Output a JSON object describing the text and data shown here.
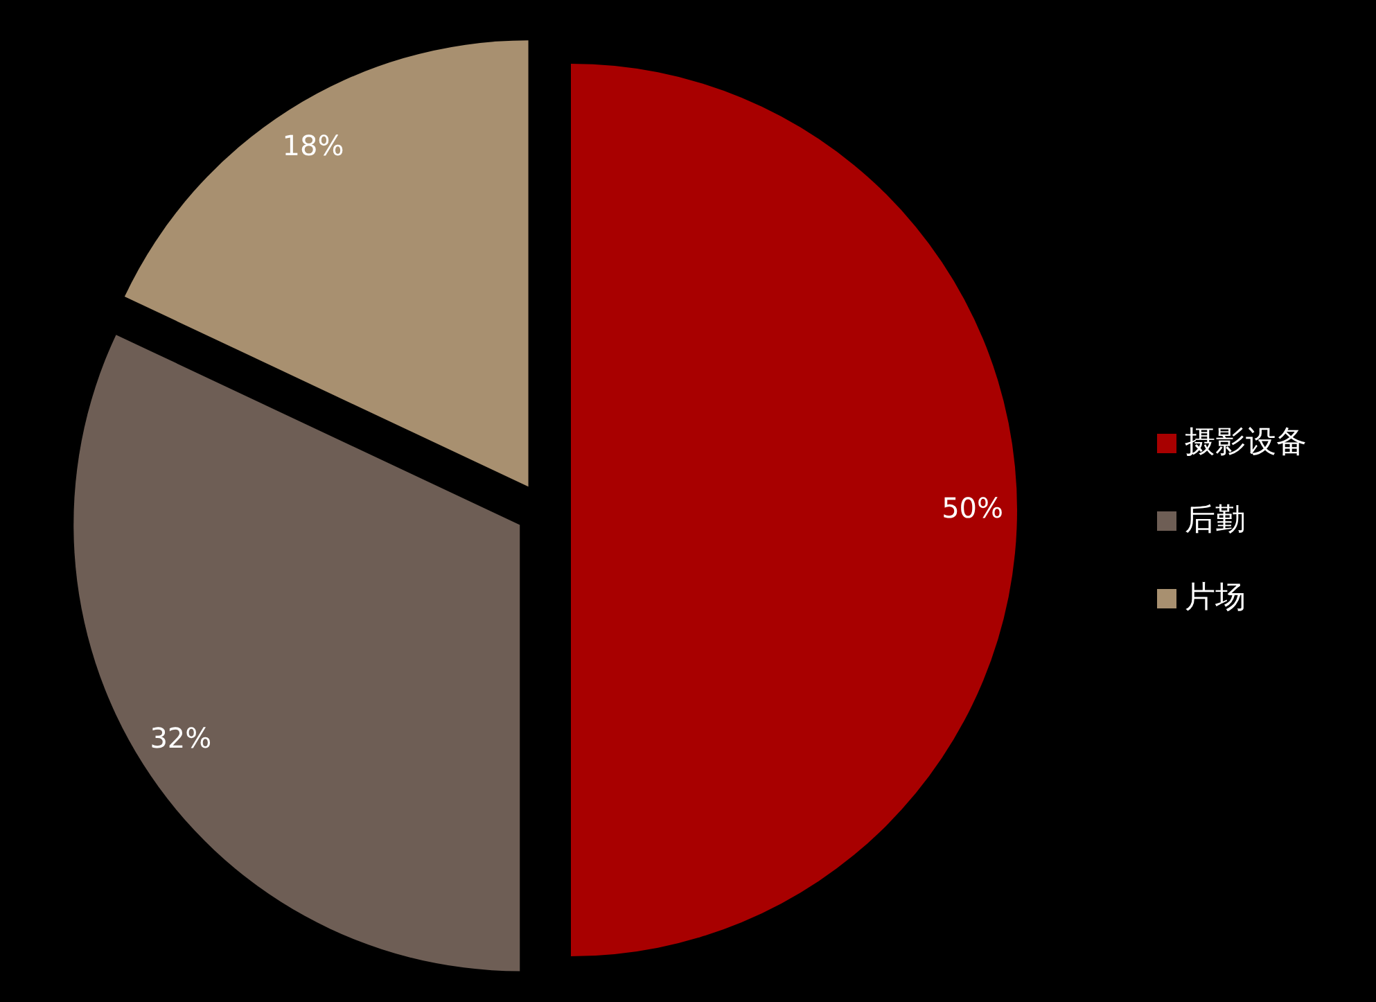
{
  "chart_data": {
    "type": "pie",
    "categories": [
      "摄影设备",
      "后勤",
      "片场"
    ],
    "values": [
      50,
      32,
      18
    ],
    "colors": [
      "#a80000",
      "#6e5e55",
      "#a89070"
    ],
    "value_labels": [
      "50%",
      "32%",
      "18%"
    ],
    "legend": "right"
  }
}
